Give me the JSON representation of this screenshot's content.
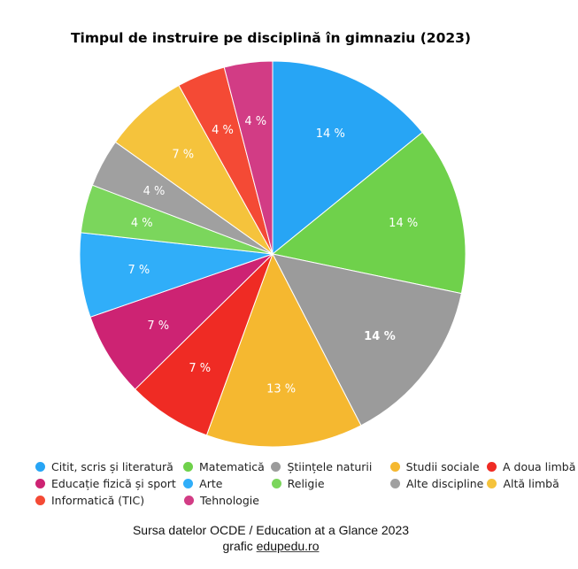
{
  "chart_data": {
    "type": "pie",
    "title": "Timpul de instruire pe disciplină în gimnaziu (2023)",
    "series": [
      {
        "name": "Citit, scris și literatură",
        "value": 14,
        "label": "14 %",
        "color": "#27a5f5"
      },
      {
        "name": "Matematică",
        "value": 14,
        "label": "14 %",
        "color": "#6fd14b"
      },
      {
        "name": "Științele naturii",
        "value": 14,
        "label": "14 %",
        "color": "#9b9b9b"
      },
      {
        "name": "Studii sociale",
        "value": 13,
        "label": "13 %",
        "color": "#f5b830"
      },
      {
        "name": "A doua limbă",
        "value": 7,
        "label": "7 %",
        "color": "#ef2b24"
      },
      {
        "name": "Educație fizică și sport",
        "value": 7,
        "label": "7 %",
        "color": "#cd2373"
      },
      {
        "name": "Arte",
        "value": 7,
        "label": "7 %",
        "color": "#30aef9"
      },
      {
        "name": "Religie",
        "value": 4,
        "label": "4 %",
        "color": "#7bd65c"
      },
      {
        "name": "Alte discipline",
        "value": 4,
        "label": "4 %",
        "color": "#a0a0a0"
      },
      {
        "name": "Altă limbă",
        "value": 7,
        "label": "7 %",
        "color": "#f5c33c"
      },
      {
        "name": "Informatică (TIC)",
        "value": 4,
        "label": "4 %",
        "color": "#f44a35"
      },
      {
        "name": "Tehnologie",
        "value": 4,
        "label": "4 %",
        "color": "#d23c85"
      }
    ],
    "legend_order": [
      "Citit, scris și literatură",
      "Matematică",
      "Științele naturii",
      "Studii sociale",
      "A doua limbă",
      "Educație fizică și sport",
      "Arte",
      "Religie",
      "Alte discipline",
      "Altă limbă",
      "Informatică (TIC)",
      "Tehnologie"
    ],
    "legend_placement": "bottom",
    "bold_label": "Științele naturii"
  },
  "source": {
    "line1": "Sursa datelor OCDE / Education at a Glance 2023",
    "line2_prefix": "grafic ",
    "line2_site": "edupedu.ro"
  }
}
